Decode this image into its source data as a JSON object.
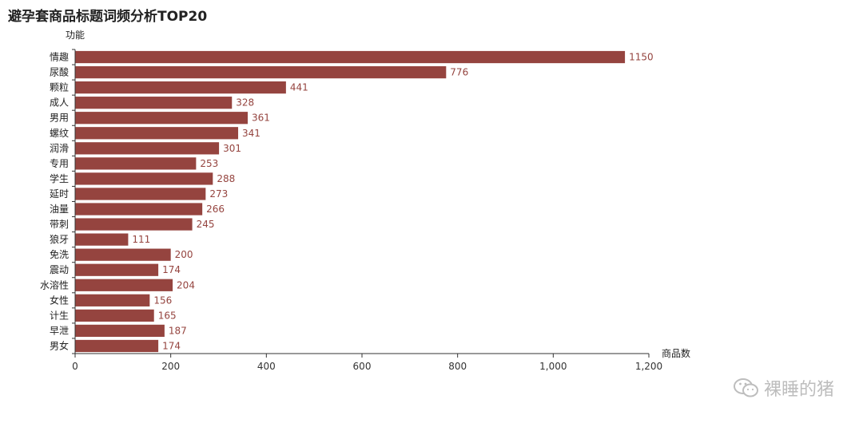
{
  "title": "避孕套商品标题词频分析TOP20",
  "watermark": "裸睡的猪",
  "colors": {
    "bar": "#95443f",
    "label": "#95443f",
    "axis": "#333333"
  },
  "chart_data": {
    "type": "bar",
    "orientation": "horizontal",
    "title": "避孕套商品标题词频分析TOP20",
    "xlabel": "商品数",
    "ylabel": "功能",
    "xlim": [
      0,
      1200
    ],
    "xticks": [
      0,
      200,
      400,
      600,
      800,
      1000,
      1200
    ],
    "xtick_labels": [
      "0",
      "200",
      "400",
      "600",
      "800",
      "1,000",
      "1,200"
    ],
    "grid": false,
    "categories": [
      "情趣",
      "尿酸",
      "颗粒",
      "成人",
      "男用",
      "螺纹",
      "润滑",
      "专用",
      "学生",
      "延时",
      "油量",
      "带刺",
      "狼牙",
      "免洗",
      "震动",
      "水溶性",
      "女性",
      "计生",
      "早泄",
      "男女"
    ],
    "values": [
      1150,
      776,
      441,
      328,
      361,
      341,
      301,
      253,
      288,
      273,
      266,
      245,
      111,
      200,
      174,
      204,
      156,
      165,
      187,
      174
    ]
  }
}
